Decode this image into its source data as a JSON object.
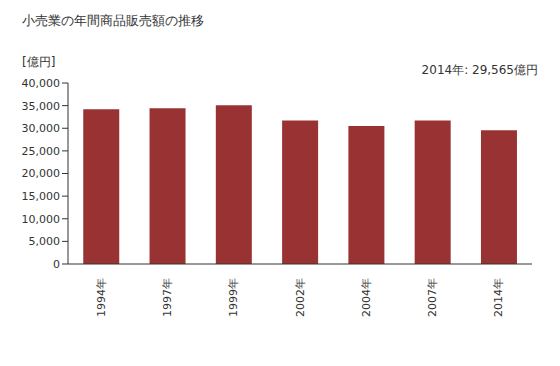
{
  "chart_data": {
    "type": "bar",
    "title": "小売業の年間商品販売額の推移",
    "ylabel": "[億円]",
    "annotation": "2014年: 29,565億円",
    "categories": [
      "1994年",
      "1997年",
      "1999年",
      "2002年",
      "2004年",
      "2007年",
      "2014年"
    ],
    "values": [
      34200,
      34400,
      35100,
      31700,
      30500,
      31700,
      29565
    ],
    "color": "#993333",
    "ylim": [
      0,
      40000
    ],
    "yticks": [
      0,
      {
        "value": 5000,
        "label": "5,000"
      },
      {
        "value": 10000,
        "label": "10,000"
      },
      {
        "value": 15000,
        "label": "15,000"
      },
      {
        "value": 20000,
        "label": "20,000"
      },
      {
        "value": 25000,
        "label": "25,000"
      },
      {
        "value": 30000,
        "label": "30,000"
      },
      {
        "value": 35000,
        "label": "35,000"
      },
      {
        "value": 40000,
        "label": "40,000"
      }
    ],
    "grid": false
  }
}
